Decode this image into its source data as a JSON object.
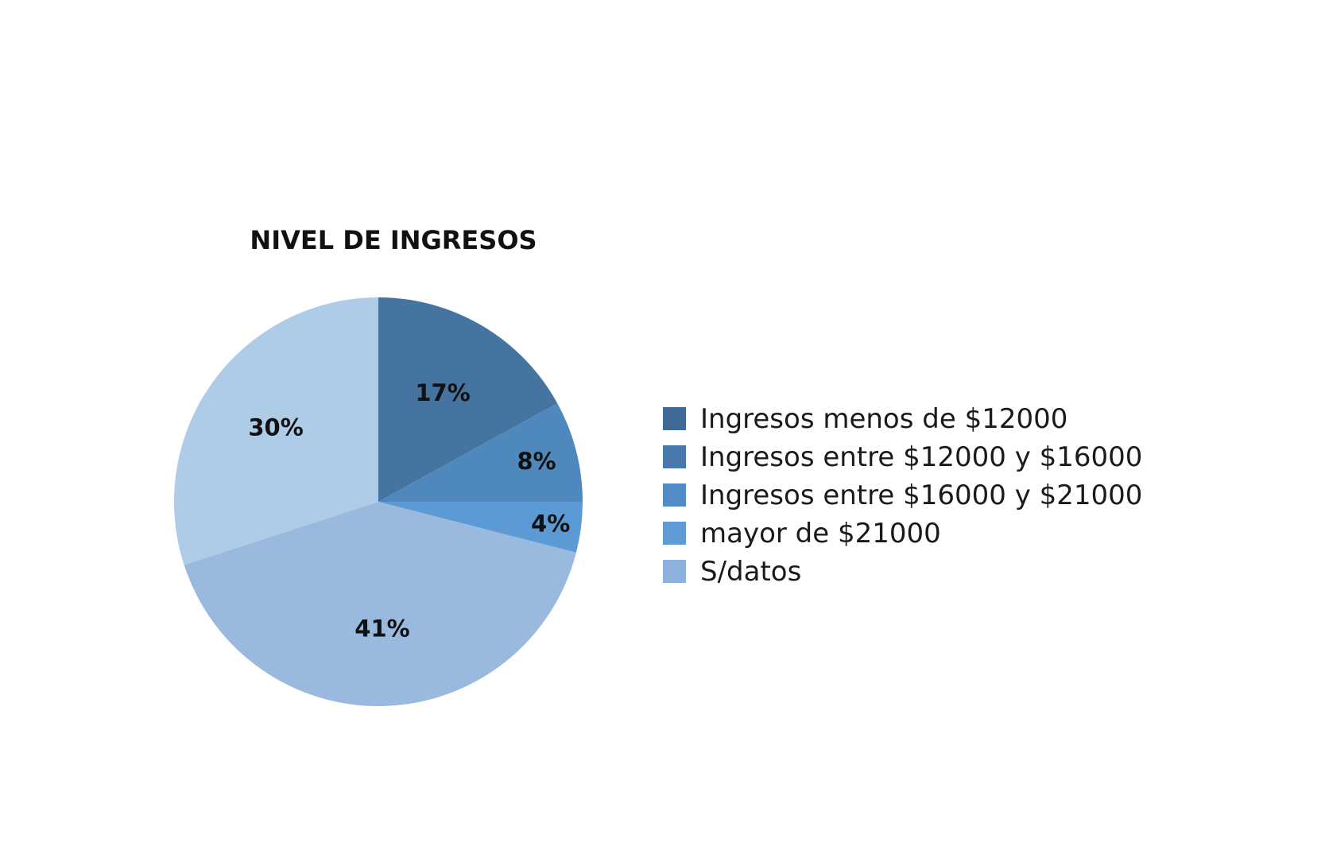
{
  "chart_data": {
    "type": "pie",
    "title": "NIVEL DE INGRESOS",
    "categories": [
      "Ingresos menos de $12000",
      "Ingresos entre $12000 y $16000",
      "Ingresos entre $16000 y $21000",
      "mayor de $21000",
      "S/datos"
    ],
    "values": [
      17,
      8,
      4,
      41,
      30
    ],
    "value_labels": [
      "17%",
      "8%",
      "4%",
      "41%",
      "30%"
    ],
    "colors": [
      "#4674a0",
      "#4f88bd",
      "#5b9ad4",
      "#99b9df",
      "#aecbe8"
    ],
    "legend_colors": [
      "#3f6a98",
      "#4878ae",
      "#528cc8",
      "#5e9ad6",
      "#8eb0dc"
    ],
    "legend_position": "right"
  }
}
